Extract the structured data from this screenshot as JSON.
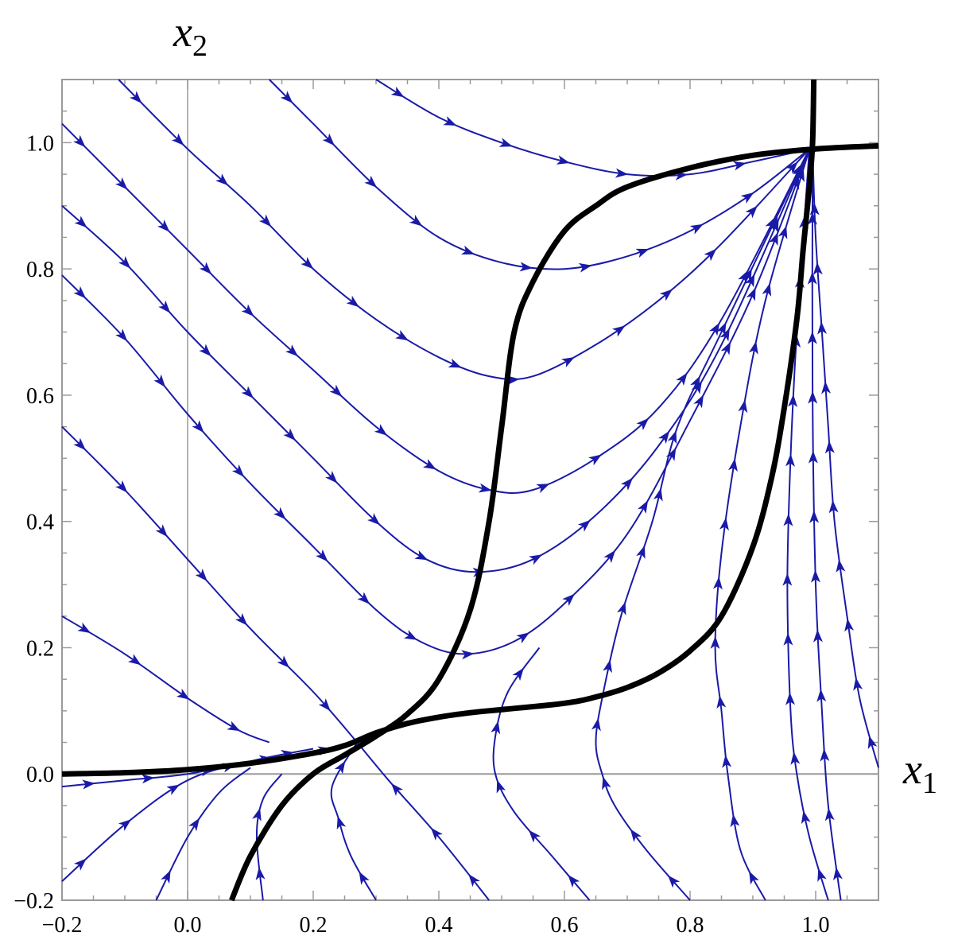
{
  "chart_data": {
    "type": "stream",
    "title": "",
    "xlabel": "x",
    "xlabel_sub": "1",
    "ylabel": "x",
    "ylabel_sub": "2",
    "xlim": [
      -0.2,
      1.1
    ],
    "ylim": [
      -0.2,
      1.1
    ],
    "x_ticks": [
      "-0.2",
      "0.0",
      "0.2",
      "0.4",
      "0.6",
      "0.8",
      "1.0"
    ],
    "y_ticks": [
      "-0.2",
      "0.0",
      "0.2",
      "0.4",
      "0.6",
      "0.8",
      "1.0"
    ],
    "x_tick_values": [
      -0.2,
      0.0,
      0.2,
      0.4,
      0.6,
      0.8,
      1.0
    ],
    "y_tick_values": [
      -0.2,
      0.0,
      0.2,
      0.4,
      0.6,
      0.8,
      1.0
    ],
    "grid": false,
    "equilibrium_points": [
      [
        0.27,
        0.05
      ],
      [
        0.995,
        0.99
      ]
    ],
    "nullclines": [
      {
        "name": "",
        "points": [
          [
            -0.2,
            0.0
          ],
          [
            -0.1,
            0.002
          ],
          [
            0.0,
            0.007
          ],
          [
            0.1,
            0.017
          ],
          [
            0.2,
            0.033
          ],
          [
            0.25,
            0.045
          ],
          [
            0.3,
            0.065
          ],
          [
            0.35,
            0.08
          ],
          [
            0.4,
            0.09
          ],
          [
            0.45,
            0.097
          ],
          [
            0.5,
            0.102
          ],
          [
            0.6,
            0.112
          ],
          [
            0.65,
            0.122
          ],
          [
            0.7,
            0.137
          ],
          [
            0.75,
            0.16
          ],
          [
            0.8,
            0.195
          ],
          [
            0.85,
            0.25
          ],
          [
            0.9,
            0.36
          ],
          [
            0.93,
            0.47
          ],
          [
            0.95,
            0.58
          ],
          [
            0.97,
            0.72
          ],
          [
            0.98,
            0.83
          ],
          [
            0.99,
            0.93
          ],
          [
            0.995,
            1.0
          ],
          [
            0.997,
            1.1
          ]
        ]
      },
      {
        "name": "",
        "points": [
          [
            0.07,
            -0.2
          ],
          [
            0.1,
            -0.13
          ],
          [
            0.15,
            -0.05
          ],
          [
            0.2,
            0.0
          ],
          [
            0.25,
            0.03
          ],
          [
            0.3,
            0.06
          ],
          [
            0.35,
            0.095
          ],
          [
            0.4,
            0.15
          ],
          [
            0.45,
            0.26
          ],
          [
            0.48,
            0.4
          ],
          [
            0.5,
            0.55
          ],
          [
            0.52,
            0.7
          ],
          [
            0.55,
            0.78
          ],
          [
            0.6,
            0.86
          ],
          [
            0.65,
            0.9
          ],
          [
            0.7,
            0.93
          ],
          [
            0.8,
            0.96
          ],
          [
            0.9,
            0.98
          ],
          [
            1.0,
            0.99
          ],
          [
            1.1,
            0.995
          ]
        ]
      }
    ],
    "streamlines": [
      {
        "points": [
          [
            0.3,
            1.1
          ],
          [
            0.4,
            1.04
          ],
          [
            0.5,
            1.0
          ],
          [
            0.6,
            0.97
          ],
          [
            0.7,
            0.95
          ],
          [
            0.8,
            0.95
          ],
          [
            0.9,
            0.97
          ],
          [
            0.99,
            0.99
          ]
        ]
      },
      {
        "points": [
          [
            0.13,
            1.1
          ],
          [
            0.2,
            1.03
          ],
          [
            0.3,
            0.93
          ],
          [
            0.4,
            0.85
          ],
          [
            0.5,
            0.81
          ],
          [
            0.6,
            0.8
          ],
          [
            0.7,
            0.82
          ],
          [
            0.8,
            0.86
          ],
          [
            0.9,
            0.92
          ],
          [
            0.99,
            0.99
          ]
        ]
      },
      {
        "points": [
          [
            -0.11,
            1.1
          ],
          [
            0.0,
            0.99
          ],
          [
            0.1,
            0.9
          ],
          [
            0.2,
            0.8
          ],
          [
            0.3,
            0.72
          ],
          [
            0.4,
            0.66
          ],
          [
            0.48,
            0.63
          ],
          [
            0.55,
            0.63
          ],
          [
            0.65,
            0.68
          ],
          [
            0.75,
            0.75
          ],
          [
            0.85,
            0.84
          ],
          [
            0.99,
            0.99
          ]
        ]
      },
      {
        "points": [
          [
            -0.2,
            1.03
          ],
          [
            -0.1,
            0.93
          ],
          [
            0.0,
            0.83
          ],
          [
            0.1,
            0.73
          ],
          [
            0.2,
            0.64
          ],
          [
            0.3,
            0.55
          ],
          [
            0.4,
            0.48
          ],
          [
            0.48,
            0.45
          ],
          [
            0.55,
            0.45
          ],
          [
            0.65,
            0.5
          ],
          [
            0.75,
            0.58
          ],
          [
            0.85,
            0.72
          ],
          [
            0.99,
            0.99
          ]
        ]
      },
      {
        "points": [
          [
            -0.2,
            0.9
          ],
          [
            -0.1,
            0.81
          ],
          [
            0.0,
            0.7
          ],
          [
            0.1,
            0.6
          ],
          [
            0.2,
            0.5
          ],
          [
            0.3,
            0.4
          ],
          [
            0.38,
            0.34
          ],
          [
            0.46,
            0.32
          ],
          [
            0.55,
            0.34
          ],
          [
            0.65,
            0.41
          ],
          [
            0.75,
            0.52
          ],
          [
            0.85,
            0.68
          ],
          [
            0.99,
            0.99
          ]
        ]
      },
      {
        "points": [
          [
            -0.2,
            0.79
          ],
          [
            -0.1,
            0.69
          ],
          [
            0.0,
            0.57
          ],
          [
            0.1,
            0.46
          ],
          [
            0.2,
            0.36
          ],
          [
            0.3,
            0.26
          ],
          [
            0.37,
            0.21
          ],
          [
            0.44,
            0.19
          ],
          [
            0.52,
            0.21
          ],
          [
            0.6,
            0.27
          ],
          [
            0.7,
            0.38
          ],
          [
            0.8,
            0.56
          ],
          [
            0.9,
            0.76
          ],
          [
            0.99,
            0.99
          ]
        ]
      },
      {
        "points": [
          [
            -0.2,
            0.55
          ],
          [
            -0.1,
            0.45
          ],
          [
            0.0,
            0.34
          ],
          [
            0.1,
            0.23
          ],
          [
            0.2,
            0.13
          ],
          [
            0.27,
            0.05
          ]
        ]
      },
      {
        "points": [
          [
            -0.2,
            0.25
          ],
          [
            -0.1,
            0.19
          ],
          [
            0.0,
            0.12
          ],
          [
            0.08,
            0.07
          ],
          [
            0.13,
            0.05
          ]
        ]
      },
      {
        "points": [
          [
            -0.2,
            -0.02
          ],
          [
            -0.1,
            -0.01
          ],
          [
            0.0,
            0.0
          ],
          [
            0.1,
            0.02
          ],
          [
            0.2,
            0.035
          ],
          [
            0.27,
            0.05
          ]
        ]
      },
      {
        "points": [
          [
            -0.2,
            -0.17
          ],
          [
            -0.1,
            -0.08
          ],
          [
            0.0,
            -0.01
          ],
          [
            0.1,
            0.02
          ],
          [
            0.2,
            0.04
          ]
        ]
      },
      {
        "points": [
          [
            -0.05,
            -0.2
          ],
          [
            0.0,
            -0.1
          ],
          [
            0.05,
            -0.03
          ],
          [
            0.1,
            0.01
          ]
        ]
      },
      {
        "points": [
          [
            0.12,
            -0.2
          ],
          [
            0.11,
            -0.1
          ],
          [
            0.12,
            -0.04
          ],
          [
            0.15,
            0.0
          ]
        ]
      },
      {
        "points": [
          [
            0.3,
            -0.2
          ],
          [
            0.26,
            -0.13
          ],
          [
            0.24,
            -0.07
          ],
          [
            0.23,
            -0.02
          ],
          [
            0.27,
            0.05
          ]
        ]
      },
      {
        "points": [
          [
            0.48,
            -0.2
          ],
          [
            0.4,
            -0.1
          ],
          [
            0.32,
            -0.01
          ],
          [
            0.27,
            0.05
          ]
        ]
      },
      {
        "points": [
          [
            0.64,
            -0.2
          ],
          [
            0.58,
            -0.13
          ],
          [
            0.52,
            -0.06
          ],
          [
            0.49,
            0.0
          ],
          [
            0.49,
            0.06
          ],
          [
            0.51,
            0.13
          ],
          [
            0.56,
            0.2
          ]
        ]
      },
      {
        "points": [
          [
            0.8,
            -0.2
          ],
          [
            0.73,
            -0.12
          ],
          [
            0.68,
            -0.05
          ],
          [
            0.66,
            0.0
          ],
          [
            0.65,
            0.05
          ],
          [
            0.66,
            0.12
          ],
          [
            0.69,
            0.25
          ],
          [
            0.74,
            0.4
          ],
          [
            0.78,
            0.55
          ],
          [
            0.85,
            0.7
          ],
          [
            0.99,
            0.99
          ]
        ]
      },
      {
        "points": [
          [
            0.92,
            -0.2
          ],
          [
            0.88,
            -0.12
          ],
          [
            0.86,
            0.0
          ],
          [
            0.85,
            0.1
          ],
          [
            0.84,
            0.2
          ],
          [
            0.85,
            0.35
          ],
          [
            0.88,
            0.55
          ],
          [
            0.92,
            0.75
          ],
          [
            0.99,
            0.99
          ]
        ]
      },
      {
        "points": [
          [
            1.02,
            -0.2
          ],
          [
            0.99,
            -0.1
          ],
          [
            0.97,
            0.0
          ],
          [
            0.96,
            0.1
          ],
          [
            0.955,
            0.3
          ],
          [
            0.96,
            0.5
          ],
          [
            0.97,
            0.7
          ],
          [
            0.99,
            0.99
          ]
        ]
      },
      {
        "points": [
          [
            1.1,
            0.01
          ],
          [
            1.07,
            0.12
          ],
          [
            1.05,
            0.25
          ],
          [
            1.03,
            0.4
          ],
          [
            1.02,
            0.55
          ],
          [
            1.01,
            0.7
          ],
          [
            1.0,
            0.85
          ],
          [
            0.995,
            0.99
          ]
        ]
      },
      {
        "points": [
          [
            1.04,
            -0.2
          ],
          [
            1.02,
            -0.05
          ],
          [
            1.01,
            0.1
          ],
          [
            1.0,
            0.3
          ],
          [
            0.995,
            0.6
          ],
          [
            0.995,
            0.99
          ]
        ]
      }
    ]
  }
}
